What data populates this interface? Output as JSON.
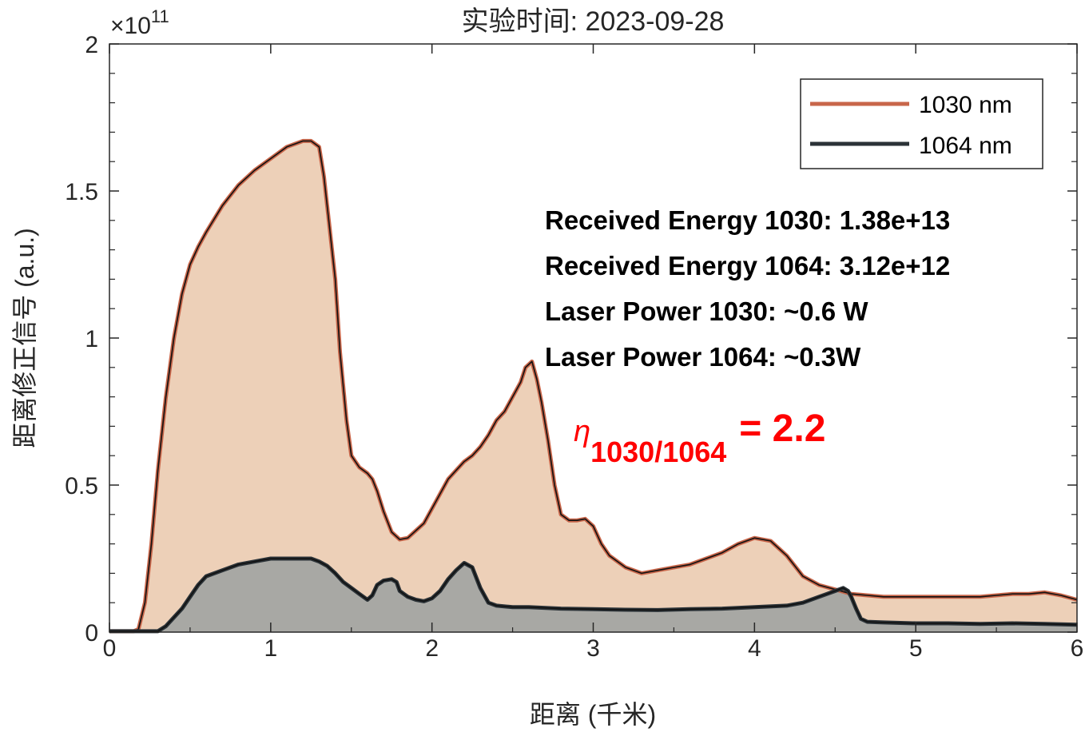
{
  "chart_data": {
    "type": "area",
    "title": "实验时间: 2023-09-28",
    "xlabel": "距离 (千米)",
    "ylabel": "距离修正信号 (a.u.)",
    "y_exponent_label": "×10",
    "y_exponent_power": "11",
    "xlim": [
      0,
      6
    ],
    "ylim": [
      0,
      2
    ],
    "x_ticks": [
      0,
      1,
      2,
      3,
      4,
      5,
      6
    ],
    "x_tick_labels": [
      "0",
      "1",
      "2",
      "3",
      "4",
      "5",
      "6"
    ],
    "y_ticks": [
      0,
      0.5,
      1,
      1.5,
      2
    ],
    "y_tick_labels": [
      "0",
      "0.5",
      "1",
      "1.5",
      "2"
    ],
    "grid": false,
    "legend_position": "top-right",
    "series": [
      {
        "name": "1030 nm",
        "color": "#c8664a",
        "fill": "#edd0b8",
        "x": [
          0,
          0.15,
          0.18,
          0.22,
          0.26,
          0.3,
          0.35,
          0.4,
          0.45,
          0.5,
          0.55,
          0.6,
          0.7,
          0.8,
          0.9,
          1.0,
          1.1,
          1.15,
          1.2,
          1.25,
          1.3,
          1.33,
          1.36,
          1.4,
          1.43,
          1.47,
          1.5,
          1.55,
          1.6,
          1.63,
          1.66,
          1.7,
          1.75,
          1.8,
          1.85,
          1.9,
          1.95,
          2.0,
          2.05,
          2.1,
          2.15,
          2.2,
          2.25,
          2.3,
          2.35,
          2.4,
          2.45,
          2.5,
          2.55,
          2.58,
          2.62,
          2.65,
          2.68,
          2.72,
          2.76,
          2.8,
          2.85,
          2.9,
          2.95,
          3.0,
          3.05,
          3.1,
          3.2,
          3.3,
          3.4,
          3.5,
          3.6,
          3.7,
          3.8,
          3.9,
          4.0,
          4.1,
          4.2,
          4.3,
          4.4,
          4.5,
          4.6,
          4.7,
          4.8,
          5.0,
          5.2,
          5.4,
          5.5,
          5.6,
          5.7,
          5.8,
          5.9,
          6.0
        ],
        "values": [
          0.003,
          0.003,
          0.01,
          0.1,
          0.3,
          0.55,
          0.8,
          1.0,
          1.15,
          1.25,
          1.31,
          1.36,
          1.45,
          1.52,
          1.57,
          1.61,
          1.65,
          1.66,
          1.67,
          1.67,
          1.65,
          1.55,
          1.4,
          1.2,
          0.95,
          0.72,
          0.6,
          0.56,
          0.54,
          0.52,
          0.48,
          0.41,
          0.34,
          0.315,
          0.32,
          0.345,
          0.37,
          0.42,
          0.47,
          0.52,
          0.55,
          0.58,
          0.6,
          0.63,
          0.67,
          0.72,
          0.75,
          0.8,
          0.85,
          0.9,
          0.92,
          0.86,
          0.78,
          0.65,
          0.5,
          0.4,
          0.38,
          0.38,
          0.385,
          0.36,
          0.3,
          0.26,
          0.22,
          0.2,
          0.21,
          0.22,
          0.23,
          0.25,
          0.27,
          0.3,
          0.32,
          0.31,
          0.26,
          0.19,
          0.16,
          0.145,
          0.13,
          0.125,
          0.12,
          0.12,
          0.12,
          0.12,
          0.125,
          0.13,
          0.13,
          0.135,
          0.125,
          0.11
        ]
      },
      {
        "name": "1064 nm",
        "color": "#2b3237",
        "fill": "#a8a8a4",
        "x": [
          0,
          0.3,
          0.35,
          0.4,
          0.45,
          0.5,
          0.55,
          0.6,
          0.7,
          0.8,
          0.9,
          1.0,
          1.1,
          1.2,
          1.25,
          1.3,
          1.35,
          1.4,
          1.45,
          1.5,
          1.55,
          1.6,
          1.63,
          1.66,
          1.7,
          1.75,
          1.78,
          1.8,
          1.85,
          1.9,
          1.95,
          2.0,
          2.05,
          2.1,
          2.15,
          2.2,
          2.25,
          2.3,
          2.35,
          2.4,
          2.5,
          2.6,
          2.8,
          3.0,
          3.2,
          3.4,
          3.6,
          3.8,
          4.0,
          4.2,
          4.3,
          4.4,
          4.45,
          4.5,
          4.55,
          4.58,
          4.6,
          4.63,
          4.66,
          4.7,
          4.8,
          5.0,
          5.2,
          5.4,
          5.6,
          5.8,
          6.0
        ],
        "values": [
          0.003,
          0.003,
          0.02,
          0.05,
          0.08,
          0.12,
          0.16,
          0.19,
          0.21,
          0.23,
          0.24,
          0.25,
          0.25,
          0.25,
          0.25,
          0.24,
          0.225,
          0.2,
          0.17,
          0.15,
          0.13,
          0.11,
          0.125,
          0.16,
          0.175,
          0.18,
          0.17,
          0.14,
          0.12,
          0.11,
          0.105,
          0.115,
          0.14,
          0.18,
          0.21,
          0.235,
          0.22,
          0.15,
          0.1,
          0.09,
          0.085,
          0.085,
          0.08,
          0.078,
          0.076,
          0.075,
          0.078,
          0.08,
          0.085,
          0.09,
          0.1,
          0.12,
          0.13,
          0.14,
          0.15,
          0.14,
          0.12,
          0.08,
          0.045,
          0.035,
          0.033,
          0.03,
          0.03,
          0.028,
          0.03,
          0.028,
          0.025
        ]
      }
    ],
    "annotations": [
      "Received Energy 1030: 1.38e+13",
      "Received Energy 1064: 3.12e+12",
      "Laser Power 1030: ~0.6 W",
      "Laser Power 1064: ~0.3W"
    ],
    "eta": {
      "symbol": "η",
      "subscript": "1030/1064",
      "value_text": "= 2.2",
      "color": "#ff0000"
    }
  }
}
